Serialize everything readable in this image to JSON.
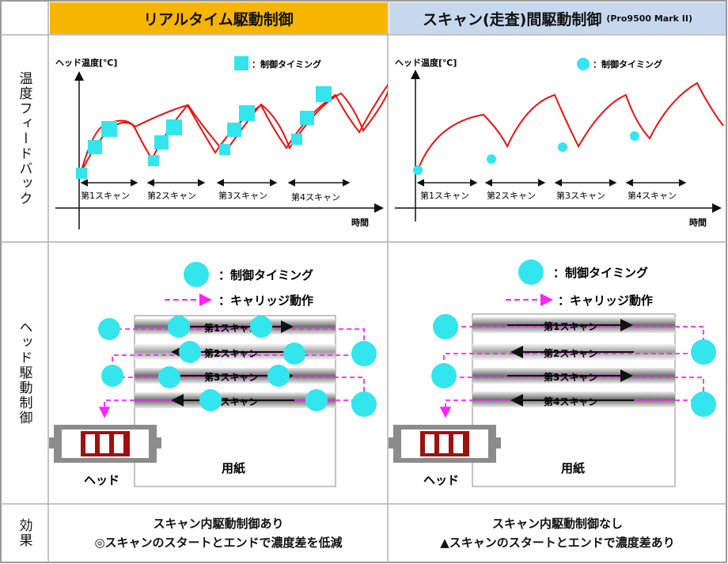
{
  "header": {
    "left": "リアルタイム駆動制御",
    "right_main": "スキャン(走査)間駆動制御",
    "right_sub": "(Pro9500 Mark II)"
  },
  "rows": {
    "temperature": "温度フィードバック",
    "head_drive": "ヘッド駆動制御",
    "effect": "効果"
  },
  "graph": {
    "ylabel": "ヘッド温度[℃]",
    "xlabel": "時間",
    "legend": "：制御タイミング",
    "scans": [
      "第1スキャン",
      "第2スキャン",
      "第3スキャン",
      "第4スキャン"
    ]
  },
  "drive": {
    "legend_timing": "：制御タイミング",
    "legend_carriage": "：キャリッジ動作",
    "scans": [
      "第1スキャン",
      "第2スキャン",
      "第3スキャン",
      "第4スキャン"
    ],
    "head_label": "ヘッド",
    "paper_label": "用紙"
  },
  "effect": {
    "left_line1": "スキャン内駆動制御あり",
    "left_line2": "◎スキャンのスタートとエンドで濃度差を低減",
    "right_line1": "スキャン内駆動制御なし",
    "right_line2": "▲スキャンのスタートとエンドで濃度差あり"
  },
  "colors": {
    "header_left_bg": "#f7b500",
    "header_right_bg": "#c6d8ee",
    "curve": "#ee1111",
    "marker": "#33e6ee",
    "carriage": "#ff22ff",
    "head_body": "#8c8c8c",
    "nozzle": "#a01010"
  }
}
